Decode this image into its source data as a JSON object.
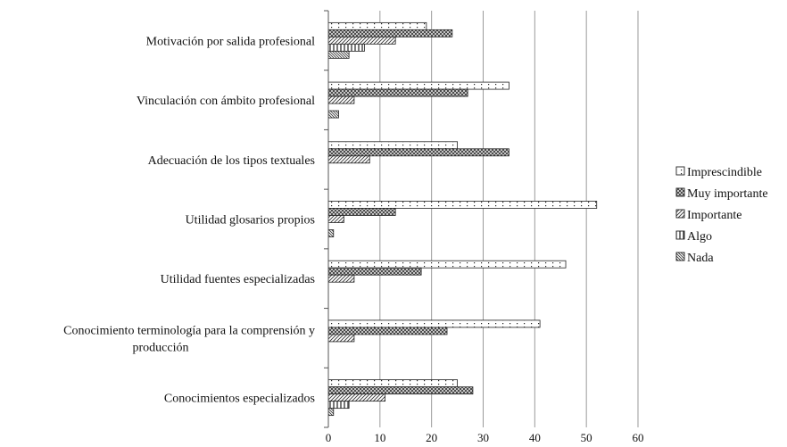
{
  "chart_data": {
    "type": "bar",
    "orientation": "horizontal",
    "categories": [
      "Motivación por salida profesional",
      "Vinculación con ámbito profesional",
      "Adecuación de los tipos textuales",
      "Utilidad glosarios propios",
      "Utilidad fuentes especializadas",
      "Conocimiento terminología para la comprensión y producción",
      "Conocimientos especializados"
    ],
    "category_lines": [
      [
        "Motivación por salida profesional"
      ],
      [
        "Vinculación con ámbito profesional"
      ],
      [
        "Adecuación de los tipos textuales"
      ],
      [
        "Utilidad glosarios propios"
      ],
      [
        "Utilidad fuentes especializadas"
      ],
      [
        "Conocimiento terminología para la comprensión y",
        "producción"
      ],
      [
        "Conocimientos especializados"
      ]
    ],
    "series": [
      {
        "name": "Imprescindible",
        "values": [
          19,
          35,
          25,
          52,
          46,
          41,
          25
        ],
        "pattern": "dots"
      },
      {
        "name": "Muy importante",
        "values": [
          24,
          27,
          35,
          13,
          18,
          23,
          28
        ],
        "pattern": "crosshatch"
      },
      {
        "name": "Importante",
        "values": [
          13,
          5,
          8,
          3,
          5,
          5,
          11
        ],
        "pattern": "diagonal"
      },
      {
        "name": "Algo",
        "values": [
          7,
          0,
          0,
          0,
          0,
          0,
          4
        ],
        "pattern": "vertical"
      },
      {
        "name": "Nada",
        "values": [
          4,
          2,
          0,
          1,
          0,
          0,
          1
        ],
        "pattern": "diagonal-dense"
      }
    ],
    "xlim": [
      0,
      60
    ],
    "xticks": [
      "0",
      "10",
      "20",
      "30",
      "40",
      "50",
      "60"
    ],
    "grid": true,
    "legend_position": "right",
    "title": "",
    "xlabel": "",
    "ylabel": ""
  }
}
